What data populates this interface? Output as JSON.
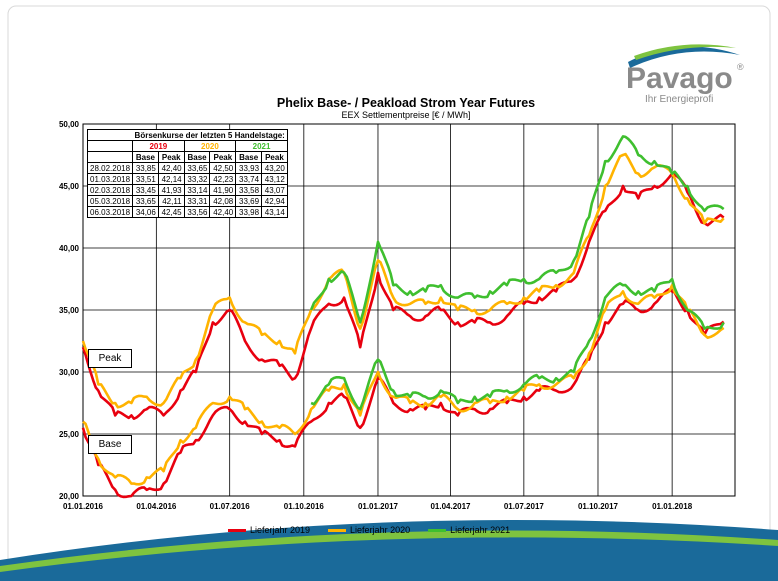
{
  "brand": {
    "name": "Pavago",
    "registered": "®",
    "tagline": "Ihr Energieprofi"
  },
  "chart_data": {
    "type": "line",
    "title": "Phelix Base- / Peakload Strom Year Futures",
    "subtitle": "EEX Settlementpreise [€ / MWh]",
    "ylim": [
      20,
      50
    ],
    "yticks": [
      "20,00",
      "25,00",
      "30,00",
      "35,00",
      "40,00",
      "45,00",
      "50,00"
    ],
    "ytick_values": [
      20,
      25,
      30,
      35,
      40,
      45,
      50
    ],
    "xlim": [
      "2016-01-01",
      "2018-03-20"
    ],
    "xticks": [
      "01.01.2016",
      "01.04.2016",
      "01.07.2016",
      "01.10.2016",
      "01.01.2017",
      "01.04.2017",
      "01.07.2017",
      "01.10.2017",
      "01.01.2018"
    ],
    "xtick_dates": [
      "2016-01-01",
      "2016-04-01",
      "2016-07-01",
      "2016-10-01",
      "2017-01-01",
      "2017-04-01",
      "2017-07-01",
      "2017-10-01",
      "2018-01-01"
    ],
    "grid": true,
    "legend_position": "bottom",
    "colors": {
      "Lieferjahr 2019": "#e8000f",
      "Lieferjahr 2020": "#ffb300",
      "Lieferjahr 2021": "#3fbf2f"
    },
    "group_labels": [
      "Peak",
      "Base"
    ],
    "series": [
      {
        "name": "Lieferjahr 2019",
        "group": "Peak",
        "x": [
          "2016-01-01",
          "2016-01-20",
          "2016-02-10",
          "2016-03-01",
          "2016-03-20",
          "2016-04-10",
          "2016-05-01",
          "2016-05-20",
          "2016-06-10",
          "2016-07-01",
          "2016-07-20",
          "2016-08-10",
          "2016-09-01",
          "2016-09-20",
          "2016-10-10",
          "2016-11-01",
          "2016-11-20",
          "2016-12-10",
          "2017-01-01",
          "2017-01-20",
          "2017-02-10",
          "2017-03-01",
          "2017-03-20",
          "2017-04-10",
          "2017-05-01",
          "2017-05-20",
          "2017-06-10",
          "2017-07-01",
          "2017-07-20",
          "2017-08-10",
          "2017-09-01",
          "2017-09-20",
          "2017-10-10",
          "2017-11-01",
          "2017-11-20",
          "2017-12-10",
          "2018-01-01",
          "2018-01-20",
          "2018-02-10",
          "2018-03-06"
        ],
        "y": [
          32.0,
          28.5,
          26.5,
          26.5,
          27.0,
          26.5,
          28.5,
          30.0,
          34.0,
          35.0,
          32.5,
          31.0,
          30.5,
          29.5,
          33.5,
          35.5,
          36.0,
          32.0,
          38.0,
          35.0,
          34.5,
          34.5,
          35.0,
          34.0,
          34.0,
          34.0,
          34.5,
          35.5,
          36.0,
          36.5,
          37.5,
          40.5,
          43.0,
          45.0,
          44.0,
          45.0,
          46.0,
          44.5,
          42.0,
          42.45
        ]
      },
      {
        "name": "Lieferjahr 2020",
        "group": "Peak",
        "x": [
          "2016-01-01",
          "2016-01-20",
          "2016-02-10",
          "2016-03-01",
          "2016-03-20",
          "2016-04-10",
          "2016-05-01",
          "2016-05-20",
          "2016-06-10",
          "2016-07-01",
          "2016-07-20",
          "2016-08-10",
          "2016-09-01",
          "2016-09-20",
          "2016-10-10",
          "2016-11-01",
          "2016-11-20",
          "2016-12-10",
          "2017-01-01",
          "2017-01-20",
          "2017-02-10",
          "2017-03-01",
          "2017-03-20",
          "2017-04-10",
          "2017-05-01",
          "2017-05-20",
          "2017-06-10",
          "2017-07-01",
          "2017-07-20",
          "2017-08-10",
          "2017-09-01",
          "2017-09-20",
          "2017-10-10",
          "2017-11-01",
          "2017-11-20",
          "2017-12-10",
          "2018-01-01",
          "2018-01-20",
          "2018-02-10",
          "2018-03-06"
        ],
        "y": [
          32.5,
          29.0,
          27.5,
          27.5,
          28.0,
          27.5,
          29.5,
          31.0,
          35.0,
          36.0,
          34.0,
          33.0,
          32.5,
          31.5,
          35.0,
          37.5,
          38.0,
          33.5,
          39.0,
          36.0,
          35.5,
          35.5,
          36.0,
          35.0,
          35.0,
          35.0,
          35.5,
          36.0,
          36.5,
          37.0,
          38.0,
          41.0,
          45.0,
          47.5,
          46.0,
          46.5,
          46.0,
          44.0,
          42.0,
          42.4
        ]
      },
      {
        "name": "Lieferjahr 2021",
        "group": "Peak",
        "x": [
          "2016-10-10",
          "2016-11-01",
          "2016-11-20",
          "2016-12-10",
          "2017-01-01",
          "2017-01-20",
          "2017-02-10",
          "2017-03-01",
          "2017-03-20",
          "2017-04-10",
          "2017-05-01",
          "2017-05-20",
          "2017-06-10",
          "2017-07-01",
          "2017-07-20",
          "2017-08-10",
          "2017-09-01",
          "2017-09-20",
          "2017-10-10",
          "2017-11-01",
          "2017-11-20",
          "2017-12-10",
          "2018-01-01",
          "2018-01-20",
          "2018-02-10",
          "2018-03-06"
        ],
        "y": [
          35.0,
          37.5,
          38.0,
          34.0,
          40.5,
          37.0,
          36.5,
          36.5,
          37.0,
          36.0,
          36.0,
          36.5,
          37.0,
          37.5,
          37.5,
          38.0,
          39.0,
          42.5,
          47.0,
          49.0,
          47.5,
          47.0,
          46.0,
          45.0,
          43.0,
          43.14
        ]
      },
      {
        "name": "Lieferjahr 2019",
        "group": "Base",
        "x": [
          "2016-01-01",
          "2016-01-20",
          "2016-02-10",
          "2016-03-01",
          "2016-03-20",
          "2016-04-10",
          "2016-05-01",
          "2016-05-20",
          "2016-06-10",
          "2016-07-01",
          "2016-07-20",
          "2016-08-10",
          "2016-09-01",
          "2016-09-20",
          "2016-10-10",
          "2016-11-01",
          "2016-11-20",
          "2016-12-10",
          "2017-01-01",
          "2017-01-20",
          "2017-02-10",
          "2017-03-01",
          "2017-03-20",
          "2017-04-10",
          "2017-05-01",
          "2017-05-20",
          "2017-06-10",
          "2017-07-01",
          "2017-07-20",
          "2017-08-10",
          "2017-09-01",
          "2017-09-20",
          "2017-10-10",
          "2017-11-01",
          "2017-11-20",
          "2017-12-10",
          "2018-01-01",
          "2018-01-20",
          "2018-02-10",
          "2018-03-06"
        ],
        "y": [
          25.5,
          22.5,
          20.5,
          20.0,
          20.5,
          21.0,
          23.5,
          24.5,
          26.5,
          27.0,
          26.0,
          25.0,
          24.5,
          24.0,
          26.0,
          27.5,
          28.0,
          25.5,
          29.5,
          27.5,
          27.0,
          27.0,
          27.5,
          26.5,
          27.0,
          27.0,
          27.5,
          28.0,
          28.5,
          28.5,
          29.0,
          31.0,
          34.0,
          35.5,
          35.0,
          35.5,
          36.5,
          35.0,
          33.0,
          34.06
        ]
      },
      {
        "name": "Lieferjahr 2020",
        "group": "Base",
        "x": [
          "2016-01-01",
          "2016-01-20",
          "2016-02-10",
          "2016-03-01",
          "2016-03-20",
          "2016-04-10",
          "2016-05-01",
          "2016-05-20",
          "2016-06-10",
          "2016-07-01",
          "2016-07-20",
          "2016-08-10",
          "2016-09-01",
          "2016-09-20",
          "2016-10-10",
          "2016-11-01",
          "2016-11-20",
          "2016-12-10",
          "2017-01-01",
          "2017-01-20",
          "2017-02-10",
          "2017-03-01",
          "2017-03-20",
          "2017-04-10",
          "2017-05-01",
          "2017-05-20",
          "2017-06-10",
          "2017-07-01",
          "2017-07-20",
          "2017-08-10",
          "2017-09-01",
          "2017-09-20",
          "2017-10-10",
          "2017-11-01",
          "2017-11-20",
          "2017-12-10",
          "2018-01-01",
          "2018-01-20",
          "2018-02-10",
          "2018-03-06"
        ],
        "y": [
          26.0,
          23.0,
          21.5,
          21.0,
          21.5,
          22.0,
          24.5,
          25.5,
          27.5,
          28.0,
          27.0,
          26.0,
          25.5,
          25.0,
          27.0,
          28.5,
          29.0,
          26.5,
          30.0,
          28.0,
          27.5,
          27.5,
          28.0,
          27.0,
          27.5,
          27.5,
          28.0,
          28.5,
          29.0,
          29.0,
          29.5,
          31.5,
          35.0,
          36.5,
          35.5,
          36.0,
          37.0,
          35.0,
          33.0,
          33.56
        ]
      },
      {
        "name": "Lieferjahr 2021",
        "group": "Base",
        "x": [
          "2016-10-10",
          "2016-11-01",
          "2016-11-20",
          "2016-12-10",
          "2017-01-01",
          "2017-01-20",
          "2017-02-10",
          "2017-03-01",
          "2017-03-20",
          "2017-04-10",
          "2017-05-01",
          "2017-05-20",
          "2017-06-10",
          "2017-07-01",
          "2017-07-20",
          "2017-08-10",
          "2017-09-01",
          "2017-09-20",
          "2017-10-10",
          "2017-11-01",
          "2017-11-20",
          "2017-12-10",
          "2018-01-01",
          "2018-01-20",
          "2018-02-10",
          "2018-03-06"
        ],
        "y": [
          27.5,
          29.0,
          29.5,
          27.0,
          31.0,
          28.5,
          28.0,
          28.0,
          28.5,
          27.5,
          28.0,
          28.0,
          28.5,
          29.0,
          29.5,
          29.5,
          30.0,
          32.5,
          36.0,
          37.0,
          36.5,
          36.5,
          37.5,
          35.0,
          33.5,
          33.98
        ]
      }
    ]
  },
  "quotes_table": {
    "title": "Börsenkurse der letzten 5 Handelstage:",
    "years": [
      "2019",
      "2020",
      "2021"
    ],
    "year_colors": [
      "#e8000f",
      "#ffb300",
      "#3fbf2f"
    ],
    "sub_headers": [
      "Base",
      "Peak",
      "Base",
      "Peak",
      "Base",
      "Peak"
    ],
    "rows": [
      [
        "28.02.2018",
        "33,85",
        "42,40",
        "33,65",
        "42,50",
        "33,93",
        "43,20"
      ],
      [
        "01.03.2018",
        "33,51",
        "42,14",
        "33,32",
        "42,23",
        "33,74",
        "43,12"
      ],
      [
        "02.03.2018",
        "33,45",
        "41,93",
        "33,14",
        "41,90",
        "33,58",
        "43,07"
      ],
      [
        "05.03.2018",
        "33,65",
        "42,11",
        "33,31",
        "42,08",
        "33,69",
        "42,94"
      ],
      [
        "06.03.2018",
        "34,06",
        "42,45",
        "33,56",
        "42,40",
        "33,98",
        "43,14"
      ]
    ]
  },
  "legend": [
    {
      "label": "Lieferjahr 2019",
      "color": "#e8000f"
    },
    {
      "label": "Lieferjahr 2020",
      "color": "#ffb300"
    },
    {
      "label": "Lieferjahr 2021",
      "color": "#3fbf2f"
    }
  ]
}
